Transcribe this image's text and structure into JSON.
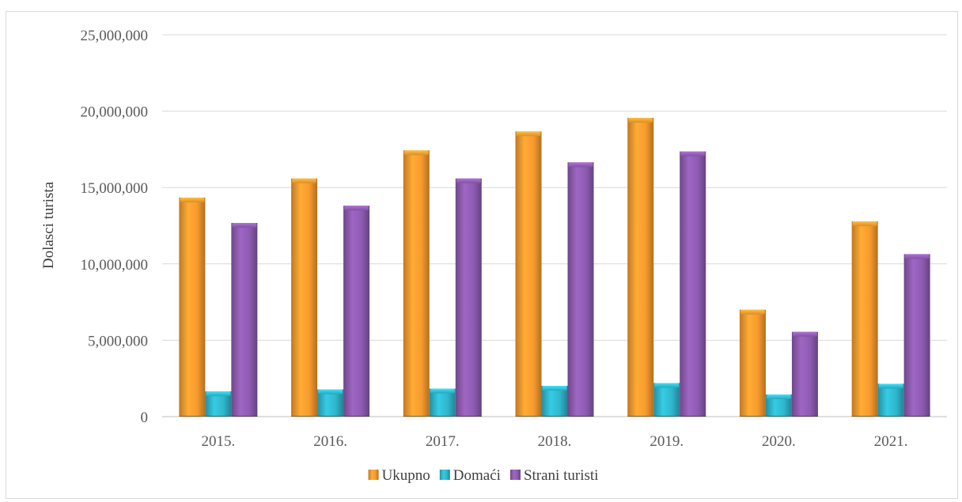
{
  "chart_data": {
    "type": "bar",
    "title": "",
    "xlabel": "",
    "ylabel": "Dolasci turista",
    "categories": [
      "2015.",
      "2016.",
      "2017.",
      "2018.",
      "2019.",
      "2020.",
      "2021."
    ],
    "series": [
      {
        "name": "Ukupno",
        "color": "#f79a2e",
        "values": [
          14340000,
          15590000,
          17430000,
          18670000,
          19560000,
          7000000,
          12780000
        ]
      },
      {
        "name": "Domaći",
        "color": "#2fb6cc",
        "values": [
          1650000,
          1780000,
          1830000,
          2010000,
          2200000,
          1450000,
          2150000
        ]
      },
      {
        "name": "Strani turisti",
        "color": "#8e5bb0",
        "values": [
          12680000,
          13810000,
          15590000,
          16650000,
          17360000,
          5550000,
          10640000
        ]
      }
    ],
    "ylim": [
      0,
      25000000
    ],
    "yticks": [
      0,
      5000000,
      10000000,
      15000000,
      20000000,
      25000000
    ],
    "ytick_labels": [
      "0",
      "5,000,000",
      "10,000,000",
      "15,000,000",
      "20,000,000",
      "25,000,000"
    ],
    "grid": true,
    "legend_position": "bottom"
  }
}
